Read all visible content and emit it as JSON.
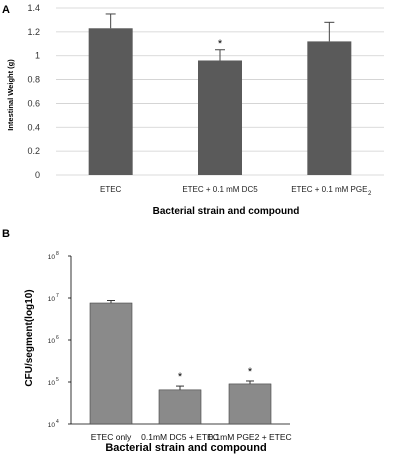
{
  "chart_data": [
    {
      "panel": "A",
      "type": "bar",
      "categories": [
        "ETEC",
        "ETEC + 0.1 mM DC5",
        "ETEC + 0.1 mM PGE"
      ],
      "category_subscripts": [
        "",
        "",
        "2"
      ],
      "values": [
        1.23,
        0.96,
        1.12
      ],
      "errors": [
        0.12,
        0.09,
        0.16
      ],
      "significance": [
        "",
        "*",
        ""
      ],
      "ylabel": "Intestinal Weight (g)",
      "xlabel": "Bacterial strain and compound",
      "ylim": [
        0,
        1.4
      ],
      "yticks": [
        "0",
        "0.2",
        "0.4",
        "0.6",
        "0.8",
        "1",
        "1.2",
        "1.4"
      ],
      "grid": true,
      "bar_color": "#5a5a5a"
    },
    {
      "panel": "B",
      "type": "bar",
      "categories": [
        "ETEC only",
        "0.1mM DC5 + ETEC",
        "0.1mM PGE2 + ETEC"
      ],
      "values": [
        7600000,
        65000,
        90000
      ],
      "errors_log10": [
        0.06,
        0.09,
        0.07
      ],
      "significance": [
        "",
        "*",
        "*"
      ],
      "ylabel": "CFU/segment(log10)",
      "xlabel": "Bacterial strain and compound",
      "yscale": "log",
      "ylim": [
        10000,
        100000000
      ],
      "ytick_base": [
        "10",
        "10",
        "10",
        "10",
        "10"
      ],
      "ytick_exp": [
        "4",
        "5",
        "6",
        "7",
        "8"
      ],
      "grid": false,
      "bar_color": "#8a8a8a"
    }
  ]
}
